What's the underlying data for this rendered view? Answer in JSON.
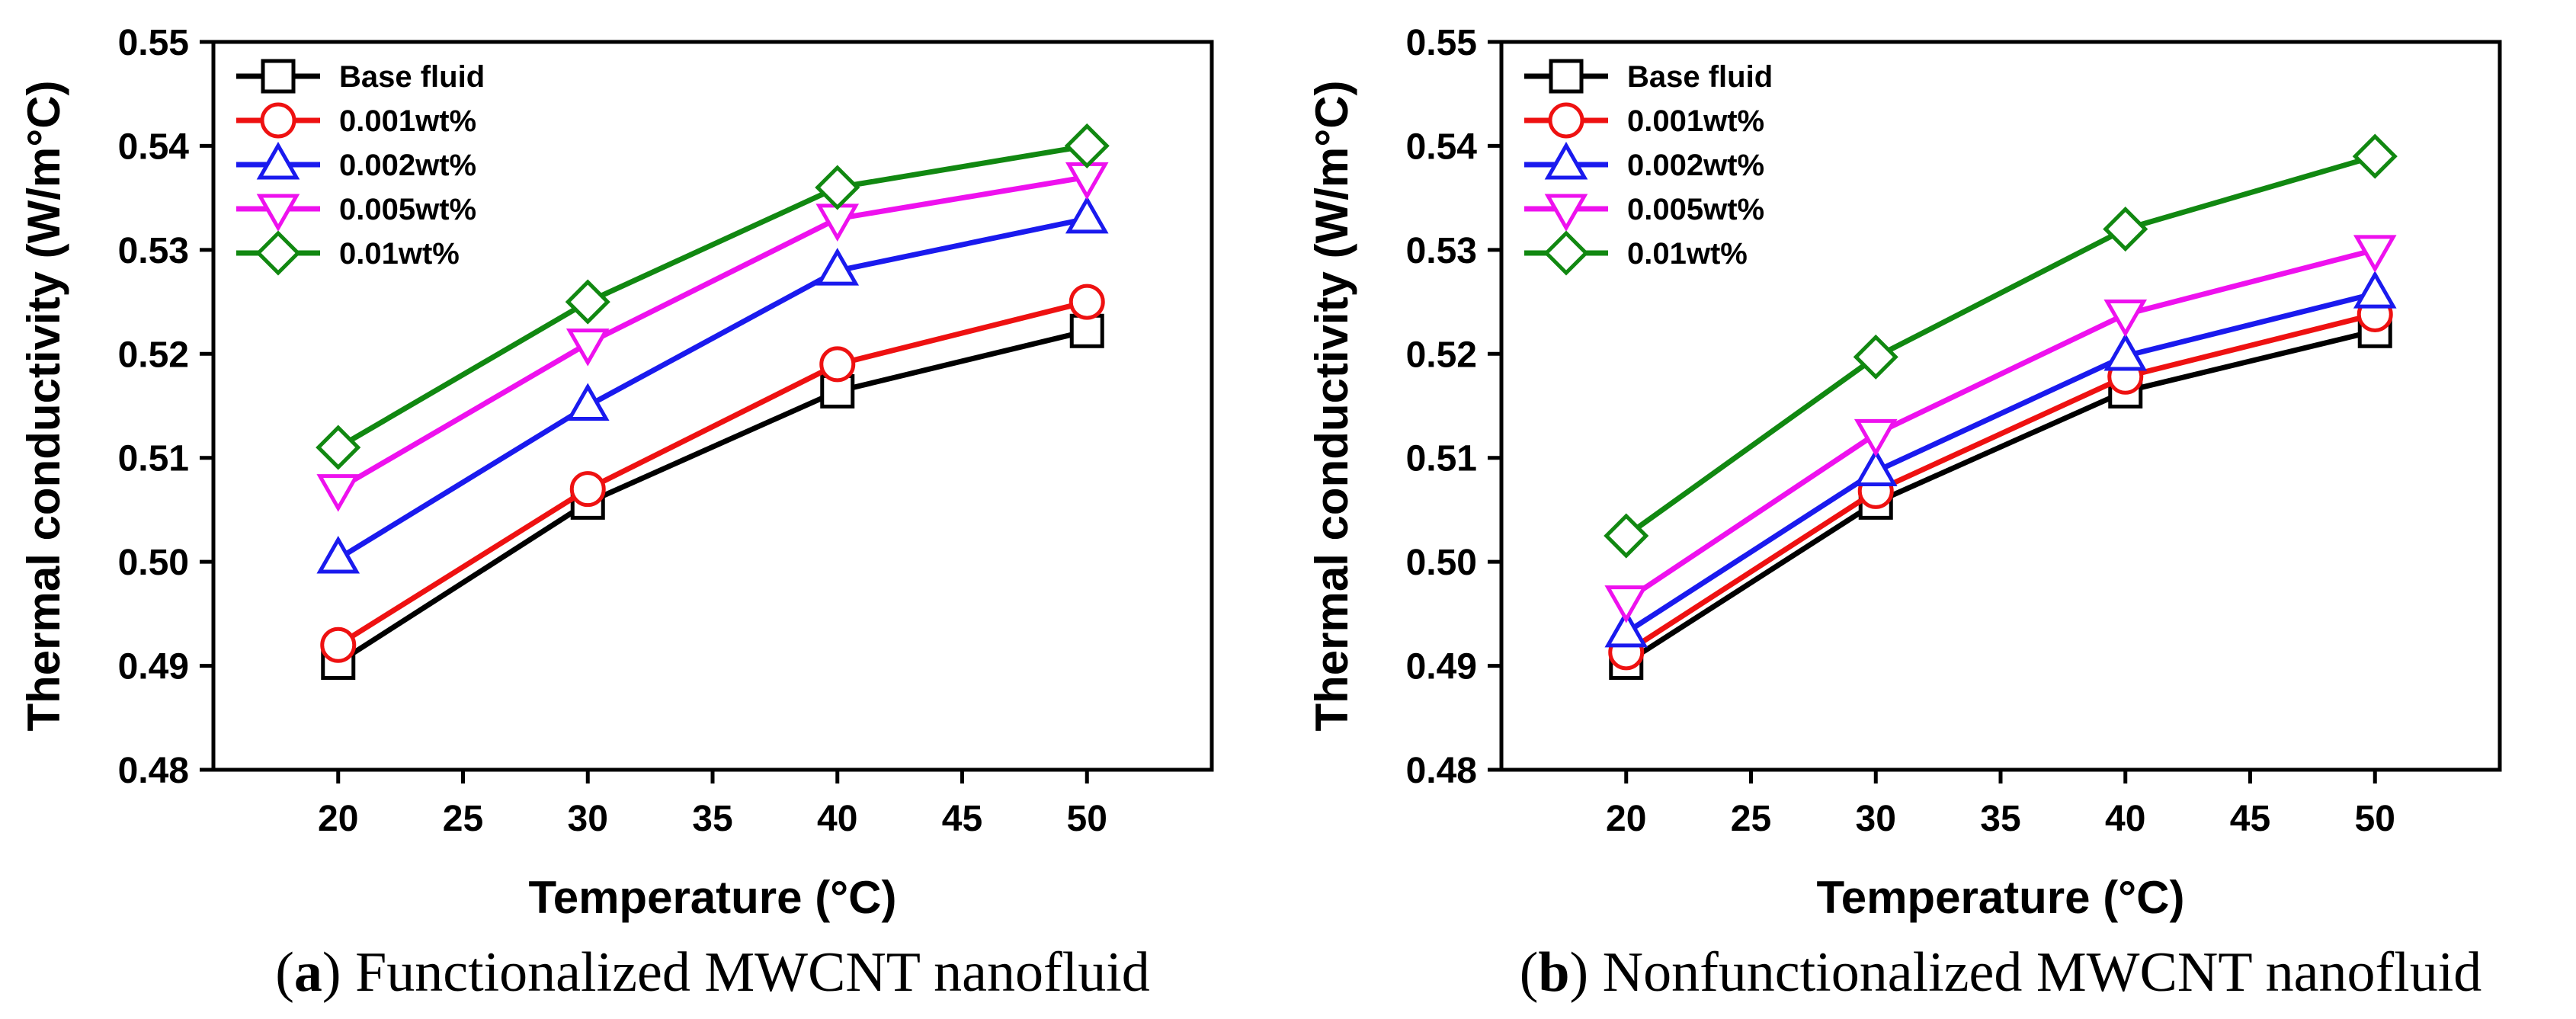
{
  "chart_data": [
    {
      "type": "line",
      "panel_letter": "a",
      "caption": "Functionalized MWCNT nanofluid",
      "xlabel": "Temperature (°C)",
      "ylabel": "Thermal conductivity (W/m°C)",
      "xlim": [
        15,
        55
      ],
      "ylim": [
        0.48,
        0.55
      ],
      "xticks": [
        20,
        25,
        30,
        35,
        40,
        45,
        50
      ],
      "yticks": [
        0.48,
        0.49,
        0.5,
        0.51,
        0.52,
        0.53,
        0.54,
        0.55
      ],
      "ytick_labels": [
        "0.48",
        "0.49",
        "0.50",
        "0.51",
        "0.52",
        "0.53",
        "0.54",
        "0.55"
      ],
      "x": [
        20,
        30,
        40,
        50
      ],
      "legend_position": "top-left",
      "series": [
        {
          "name": "Base fluid",
          "color": "#000000",
          "marker": "square",
          "values": [
            0.4903,
            0.5057,
            0.5164,
            0.5222
          ]
        },
        {
          "name": "0.001wt%",
          "color": "#ee1111",
          "marker": "circle",
          "values": [
            0.492,
            0.507,
            0.519,
            0.525
          ]
        },
        {
          "name": "0.002wt%",
          "color": "#1a1aee",
          "marker": "triangle-up",
          "values": [
            0.5003,
            0.515,
            0.528,
            0.533
          ]
        },
        {
          "name": "0.005wt%",
          "color": "#ee11ee",
          "marker": "triangle-down",
          "values": [
            0.507,
            0.521,
            0.533,
            0.537
          ]
        },
        {
          "name": "0.01wt%",
          "color": "#118811",
          "marker": "diamond",
          "values": [
            0.511,
            0.525,
            0.536,
            0.54
          ]
        }
      ]
    },
    {
      "type": "line",
      "panel_letter": "b",
      "caption": "Nonfunctionalized MWCNT nanofluid",
      "xlabel": "Temperature (°C)",
      "ylabel": "Thermal conductivity (W/m°C)",
      "xlim": [
        15,
        55
      ],
      "ylim": [
        0.48,
        0.55
      ],
      "xticks": [
        20,
        25,
        30,
        35,
        40,
        45,
        50
      ],
      "yticks": [
        0.48,
        0.49,
        0.5,
        0.51,
        0.52,
        0.53,
        0.54,
        0.55
      ],
      "ytick_labels": [
        "0.48",
        "0.49",
        "0.50",
        "0.51",
        "0.52",
        "0.53",
        "0.54",
        "0.55"
      ],
      "x": [
        20,
        30,
        40,
        50
      ],
      "legend_position": "top-left",
      "series": [
        {
          "name": "Base fluid",
          "color": "#000000",
          "marker": "square",
          "values": [
            0.4903,
            0.5057,
            0.5164,
            0.5222
          ]
        },
        {
          "name": "0.001wt%",
          "color": "#ee1111",
          "marker": "circle",
          "values": [
            0.4913,
            0.5068,
            0.5178,
            0.5238
          ]
        },
        {
          "name": "0.002wt%",
          "color": "#1a1aee",
          "marker": "triangle-up",
          "values": [
            0.4932,
            0.5087,
            0.5198,
            0.5258
          ]
        },
        {
          "name": "0.005wt%",
          "color": "#ee11ee",
          "marker": "triangle-down",
          "values": [
            0.4963,
            0.5123,
            0.5238,
            0.53
          ]
        },
        {
          "name": "0.01wt%",
          "color": "#118811",
          "marker": "diamond",
          "values": [
            0.5025,
            0.5197,
            0.532,
            0.539
          ]
        }
      ]
    }
  ]
}
